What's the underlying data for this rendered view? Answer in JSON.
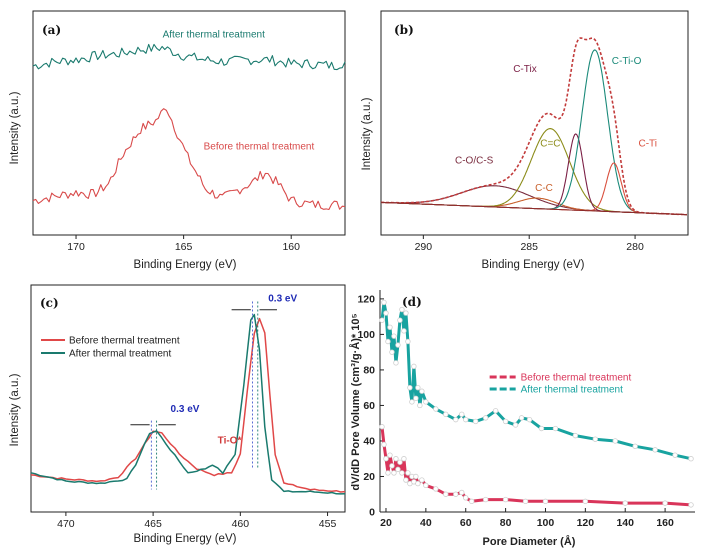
{
  "chart_data": [
    {
      "panel": "(a)",
      "type": "line",
      "xlabel": "Binding Energy (eV)",
      "ylabel": "Intensity (a.u.)",
      "xlim": [
        172,
        157.5
      ],
      "xticks": [
        170,
        165,
        160
      ],
      "series": [
        {
          "name": "After thermal treatment",
          "color": "#1a7a6e",
          "points": [
            [
              172,
              0.78
            ],
            [
              171,
              0.8
            ],
            [
              170,
              0.81
            ],
            [
              169,
              0.83
            ],
            [
              168,
              0.84
            ],
            [
              167,
              0.86
            ],
            [
              166,
              0.87
            ],
            [
              165.5,
              0.85
            ],
            [
              165,
              0.83
            ],
            [
              164,
              0.81
            ],
            [
              163,
              0.8
            ],
            [
              162,
              0.81
            ],
            [
              161,
              0.81
            ],
            [
              160,
              0.79
            ],
            [
              159,
              0.79
            ],
            [
              158,
              0.78
            ],
            [
              157.5,
              0.8
            ]
          ]
        },
        {
          "name": "Before thermal treatment",
          "color": "#d84a4a",
          "points": [
            [
              172,
              0.12
            ],
            [
              171,
              0.14
            ],
            [
              170,
              0.16
            ],
            [
              169.2,
              0.15
            ],
            [
              168.5,
              0.2
            ],
            [
              167.8,
              0.35
            ],
            [
              167,
              0.47
            ],
            [
              166.3,
              0.51
            ],
            [
              165.8,
              0.58
            ],
            [
              165.3,
              0.45
            ],
            [
              164.8,
              0.33
            ],
            [
              164,
              0.18
            ],
            [
              163.2,
              0.13
            ],
            [
              162.5,
              0.17
            ],
            [
              161.8,
              0.21
            ],
            [
              161.2,
              0.26
            ],
            [
              160.6,
              0.2
            ],
            [
              160,
              0.12
            ],
            [
              159,
              0.1
            ],
            [
              158,
              0.1
            ],
            [
              157.5,
              0.09
            ]
          ]
        }
      ],
      "annotations": [
        {
          "text": "After thermal treatment",
          "color": "#1a7a6e",
          "x": 163.6,
          "y": 0.92
        },
        {
          "text": "Before thermal treatment",
          "color": "#d84a4a",
          "x": 161.5,
          "y": 0.37
        }
      ]
    },
    {
      "panel": "(b)",
      "type": "line",
      "xlabel": "Binding Energy (eV)",
      "ylabel": "Intensity (a.u.)",
      "xlim": [
        292,
        277.5
      ],
      "xticks": [
        290,
        285,
        280
      ],
      "envelope": {
        "color": "#c23b3b"
      },
      "baseline": 0.06,
      "components": [
        {
          "name": "C-O/C-S",
          "color": "#7a2c3e",
          "center": 286.6,
          "height": 0.1,
          "width": 1.6
        },
        {
          "name": "C-C",
          "color": "#c8602c",
          "center": 284.6,
          "height": 0.05,
          "width": 0.9
        },
        {
          "name": "C=C",
          "color": "#8c8c1a",
          "center": 284.0,
          "height": 0.38,
          "width": 0.9
        },
        {
          "name": "C-Tix",
          "color": "#7b1f45",
          "center": 282.8,
          "height": 0.36,
          "width": 0.35
        },
        {
          "name": "C-Ti-O",
          "color": "#1b8a7a",
          "center": 281.9,
          "height": 0.76,
          "width": 0.6
        },
        {
          "name": "C-Ti",
          "color": "#d9503e",
          "center": 281.0,
          "height": 0.23,
          "width": 0.35
        }
      ],
      "annotations": [
        {
          "text": "C-Tix",
          "color": "#7b1f45",
          "x": 285.2,
          "y": 0.73
        },
        {
          "text": "C-Ti-O",
          "color": "#1b8a7a",
          "x": 280.4,
          "y": 0.77
        },
        {
          "text": "C=C",
          "color": "#8c8c1a",
          "x": 284.0,
          "y": 0.38
        },
        {
          "text": "C-O/C-S",
          "color": "#7a2c3e",
          "x": 287.6,
          "y": 0.3
        },
        {
          "text": "C-C",
          "color": "#c8602c",
          "x": 284.3,
          "y": 0.17
        },
        {
          "text": "C-Ti",
          "color": "#d9503e",
          "x": 279.4,
          "y": 0.38
        }
      ]
    },
    {
      "panel": "(c)",
      "type": "line",
      "xlabel": "Binding Energy (eV)",
      "ylabel": "Intensity (a.u.)",
      "xlim": [
        472,
        454
      ],
      "xticks": [
        470,
        465,
        460,
        455
      ],
      "series": [
        {
          "name": "Before thermal treatment",
          "color": "#e04848",
          "points": [
            [
              472,
              0.12
            ],
            [
              470,
              0.1
            ],
            [
              468,
              0.09
            ],
            [
              467,
              0.11
            ],
            [
              466,
              0.2
            ],
            [
              465,
              0.33
            ],
            [
              464.5,
              0.32
            ],
            [
              463.5,
              0.22
            ],
            [
              462.5,
              0.15
            ],
            [
              461.5,
              0.12
            ],
            [
              460.5,
              0.13
            ],
            [
              460,
              0.22
            ],
            [
              459.6,
              0.52
            ],
            [
              459.2,
              0.8
            ],
            [
              458.9,
              0.87
            ],
            [
              458.6,
              0.8
            ],
            [
              458.3,
              0.5
            ],
            [
              458,
              0.22
            ],
            [
              457.5,
              0.08
            ],
            [
              456,
              0.05
            ],
            [
              454,
              0.04
            ]
          ]
        },
        {
          "name": "After thermal treatment",
          "color": "#1a7a6e",
          "points": [
            [
              472,
              0.13
            ],
            [
              470,
              0.09
            ],
            [
              468,
              0.08
            ],
            [
              466.5,
              0.1
            ],
            [
              466,
              0.17
            ],
            [
              465.2,
              0.32
            ],
            [
              464.8,
              0.33
            ],
            [
              464,
              0.24
            ],
            [
              463,
              0.13
            ],
            [
              462,
              0.15
            ],
            [
              461.6,
              0.17
            ],
            [
              461,
              0.13
            ],
            [
              460.3,
              0.22
            ],
            [
              459.8,
              0.55
            ],
            [
              459.4,
              0.86
            ],
            [
              459.2,
              0.89
            ],
            [
              458.9,
              0.72
            ],
            [
              458.6,
              0.35
            ],
            [
              458.2,
              0.1
            ],
            [
              457.5,
              0.04
            ],
            [
              456,
              0.04
            ],
            [
              454,
              0.03
            ]
          ]
        }
      ],
      "annotations": [
        {
          "text": "0.3 eV",
          "color": "#1f2bb5",
          "x": 458.4,
          "y": 0.95
        },
        {
          "text": "0.3 eV",
          "color": "#1f2bb5",
          "x": 464.0,
          "y": 0.42
        },
        {
          "text": "Ti-O*",
          "color": "#d03a3a",
          "x": 461.3,
          "y": 0.27
        }
      ],
      "legend": "top-left"
    },
    {
      "panel": "(d)",
      "type": "line",
      "xlabel": "Pore Diameter (Å)",
      "ylabel": "dV/dD Pore Volume (cm³/g·Å)* 10⁵",
      "xlim": [
        17,
        175
      ],
      "ylim": [
        0,
        125
      ],
      "xticks": [
        20,
        40,
        60,
        80,
        100,
        120,
        140,
        160
      ],
      "yticks": [
        0,
        20,
        40,
        60,
        80,
        100,
        120
      ],
      "series": [
        {
          "name": "Before thermal treatment",
          "color": "#d9355a",
          "points": [
            [
              18,
              48
            ],
            [
              19,
              38
            ],
            [
              20,
              30
            ],
            [
              21,
              22
            ],
            [
              22,
              32
            ],
            [
              23,
              26
            ],
            [
              24,
              22
            ],
            [
              25,
              30
            ],
            [
              26,
              24
            ],
            [
              27,
              28
            ],
            [
              28,
              22
            ],
            [
              29,
              30
            ],
            [
              30,
              18
            ],
            [
              31,
              22
            ],
            [
              32,
              16
            ],
            [
              33,
              20
            ],
            [
              34,
              17
            ],
            [
              35,
              20
            ],
            [
              36,
              16
            ],
            [
              38,
              18
            ],
            [
              40,
              15
            ],
            [
              45,
              13
            ],
            [
              50,
              10
            ],
            [
              55,
              10
            ],
            [
              58,
              11
            ],
            [
              60,
              8
            ],
            [
              63,
              6
            ],
            [
              70,
              7
            ],
            [
              80,
              7
            ],
            [
              90,
              6
            ],
            [
              100,
              6
            ],
            [
              120,
              6
            ],
            [
              140,
              5
            ],
            [
              160,
              5
            ],
            [
              173,
              4
            ]
          ]
        },
        {
          "name": "After thermal treatment",
          "color": "#18a3a0",
          "points": [
            [
              18,
              108
            ],
            [
              19,
              118
            ],
            [
              20,
              112
            ],
            [
              21,
              96
            ],
            [
              22,
              104
            ],
            [
              23,
              90
            ],
            [
              24,
              99
            ],
            [
              25,
              84
            ],
            [
              26,
              94
            ],
            [
              27,
              108
            ],
            [
              28,
              114
            ],
            [
              29,
              102
            ],
            [
              30,
              112
            ],
            [
              31,
              96
            ],
            [
              32,
              70
            ],
            [
              33,
              62
            ],
            [
              34,
              82
            ],
            [
              35,
              64
            ],
            [
              36,
              70
            ],
            [
              37,
              60
            ],
            [
              38,
              68
            ],
            [
              40,
              62
            ],
            [
              45,
              58
            ],
            [
              50,
              55
            ],
            [
              55,
              52
            ],
            [
              58,
              55
            ],
            [
              60,
              52
            ],
            [
              65,
              51
            ],
            [
              70,
              53
            ],
            [
              75,
              57
            ],
            [
              80,
              51
            ],
            [
              85,
              49
            ],
            [
              88,
              53
            ],
            [
              92,
              52
            ],
            [
              98,
              47
            ],
            [
              105,
              47
            ],
            [
              115,
              43
            ],
            [
              125,
              41
            ],
            [
              135,
              40
            ],
            [
              145,
              37
            ],
            [
              155,
              35
            ],
            [
              165,
              32
            ],
            [
              173,
              30
            ]
          ]
        }
      ],
      "legend": "upper-center"
    }
  ],
  "panel_labels": [
    "(a)",
    "(b)",
    "(c)",
    "(d)"
  ]
}
